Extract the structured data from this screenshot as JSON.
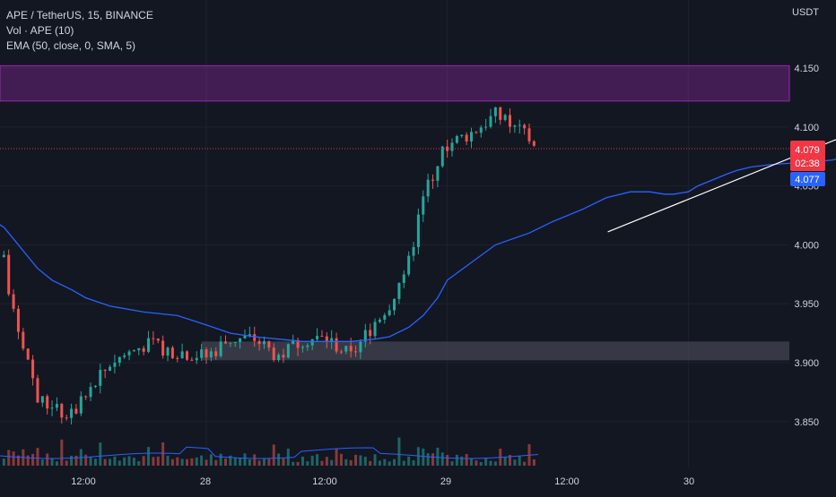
{
  "header": {
    "symbol_line": "APE / TetherUS, 15, BINANCE",
    "volume_line": "Vol · APE (10)",
    "ema_line": "EMA (50, close, 0, SMA, 5)"
  },
  "axis": {
    "currency": "USDT",
    "price_ticks": [
      "4.150",
      "4.100",
      "4.050",
      "4.000",
      "3.950",
      "3.900",
      "3.850"
    ],
    "time_ticks": [
      "12:00",
      "28",
      "12:00",
      "29",
      "12:00",
      "30"
    ]
  },
  "price_tag": {
    "value": "4.079",
    "countdown": "02:38",
    "color": "#f23645"
  },
  "ema_tag": {
    "value": "4.077",
    "color": "#2962ff"
  },
  "colors": {
    "background": "#131722",
    "up": "#26a69a",
    "down": "#ef5350",
    "ema": "#2962ff",
    "grid": "#1e222d",
    "resistance_zone": "#9c27b0",
    "support_zone": "#434651",
    "trendline": "#ffffff"
  },
  "chart_data": {
    "type": "candlestick",
    "interval": "15",
    "ylim": [
      3.825,
      4.175
    ],
    "zones": [
      {
        "name": "resistance",
        "y_low": 4.122,
        "y_high": 4.152,
        "x_start_day": 27.0,
        "x_end_day": 29.375
      },
      {
        "name": "support",
        "y_low": 3.902,
        "y_high": 3.918,
        "x_start_day": 27.99,
        "x_end_day": 29.94
      }
    ],
    "trendline": {
      "x1_day": 28.833,
      "y1": 4.011,
      "x2_day": 29.48,
      "y2": 4.118
    },
    "segments": [
      {
        "x_day": 26.9,
        "ema": 4.145,
        "close": 4.145
      },
      {
        "x_day": 26.93,
        "ema": 4.14,
        "close": 4.14
      },
      {
        "x_day": 26.96,
        "ema": 4.132,
        "close": 4.125
      },
      {
        "x_day": 27.0,
        "ema": 4.118,
        "close": 4.112
      },
      {
        "x_day": 27.02,
        "ema": 4.105,
        "close": 4.08
      },
      {
        "x_day": 27.05,
        "ema": 4.09,
        "close": 4.06
      },
      {
        "x_day": 27.08,
        "ema": 4.08,
        "close": 4.025
      },
      {
        "x_day": 27.12,
        "ema": 4.072,
        "close": 4.023
      },
      {
        "x_day": 27.18,
        "ema": 4.06,
        "close": 4.03
      },
      {
        "x_day": 27.22,
        "ema": 4.052,
        "close": 4.015
      },
      {
        "x_day": 27.27,
        "ema": 4.047,
        "close": 3.99
      },
      {
        "x_day": 27.33,
        "ema": 4.043,
        "close": 4.015
      },
      {
        "x_day": 27.4,
        "ema": 4.041,
        "close": 4.02
      },
      {
        "x_day": 27.46,
        "ema": 4.037,
        "close": 4.025
      },
      {
        "x_day": 27.52,
        "ema": 4.03,
        "close": 4.01
      },
      {
        "x_day": 27.58,
        "ema": 4.015,
        "close": 3.985
      },
      {
        "x_day": 27.6,
        "ema": 4.005,
        "close": 3.94
      },
      {
        "x_day": 27.63,
        "ema": 3.99,
        "close": 3.905
      },
      {
        "x_day": 27.65,
        "ema": 3.98,
        "close": 3.87
      },
      {
        "x_day": 27.68,
        "ema": 3.97,
        "close": 3.86
      },
      {
        "x_day": 27.72,
        "ema": 3.962,
        "close": 3.855
      },
      {
        "x_day": 27.75,
        "ema": 3.955,
        "close": 3.87
      },
      {
        "x_day": 27.8,
        "ema": 3.948,
        "close": 3.9
      },
      {
        "x_day": 27.87,
        "ema": 3.943,
        "close": 3.915
      },
      {
        "x_day": 27.94,
        "ema": 3.94,
        "close": 3.91
      },
      {
        "x_day": 28.0,
        "ema": 3.932,
        "close": 3.905
      },
      {
        "x_day": 28.05,
        "ema": 3.925,
        "close": 3.92
      },
      {
        "x_day": 28.1,
        "ema": 3.922,
        "close": 3.92
      },
      {
        "x_day": 28.15,
        "ema": 3.92,
        "close": 3.905
      },
      {
        "x_day": 28.2,
        "ema": 3.918,
        "close": 3.92
      },
      {
        "x_day": 28.25,
        "ema": 3.918,
        "close": 3.92
      },
      {
        "x_day": 28.3,
        "ema": 3.918,
        "close": 3.905
      },
      {
        "x_day": 28.35,
        "ema": 3.92,
        "close": 3.935
      },
      {
        "x_day": 28.38,
        "ema": 3.922,
        "close": 3.95
      },
      {
        "x_day": 28.42,
        "ema": 3.93,
        "close": 3.985
      },
      {
        "x_day": 28.45,
        "ema": 3.94,
        "close": 4.04
      },
      {
        "x_day": 28.48,
        "ema": 3.955,
        "close": 4.07
      },
      {
        "x_day": 28.5,
        "ema": 3.97,
        "close": 4.085
      },
      {
        "x_day": 28.55,
        "ema": 3.985,
        "close": 4.095
      },
      {
        "x_day": 28.6,
        "ema": 4.0,
        "close": 4.11
      },
      {
        "x_day": 28.67,
        "ema": 4.01,
        "close": 4.09
      },
      {
        "x_day": 28.72,
        "ema": 4.02,
        "close": 4.075
      },
      {
        "x_day": 28.78,
        "ema": 4.03,
        "close": 4.065
      },
      {
        "x_day": 28.83,
        "ema": 4.04,
        "close": 4.08
      },
      {
        "x_day": 28.88,
        "ema": 4.045,
        "close": 4.065
      },
      {
        "x_day": 28.92,
        "ema": 4.045,
        "close": 4.03
      },
      {
        "x_day": 28.95,
        "ema": 4.043,
        "close": 4.03
      },
      {
        "x_day": 28.97,
        "ema": 4.043,
        "close": 4.04
      },
      {
        "x_day": 29.0,
        "ema": 4.045,
        "close": 4.06
      },
      {
        "x_day": 29.02,
        "ema": 4.05,
        "close": 4.1
      },
      {
        "x_day": 29.05,
        "ema": 4.055,
        "close": 4.125
      },
      {
        "x_day": 29.08,
        "ema": 4.06,
        "close": 4.115
      },
      {
        "x_day": 29.1,
        "ema": 4.063,
        "close": 4.1
      },
      {
        "x_day": 29.13,
        "ema": 4.066,
        "close": 4.09
      },
      {
        "x_day": 29.17,
        "ema": 4.068,
        "close": 4.08
      },
      {
        "x_day": 29.2,
        "ema": 4.069,
        "close": 4.075
      },
      {
        "x_day": 29.25,
        "ema": 4.07,
        "close": 4.08
      },
      {
        "x_day": 29.3,
        "ema": 4.072,
        "close": 4.07
      },
      {
        "x_day": 29.33,
        "ema": 4.075,
        "close": 4.08
      },
      {
        "x_day": 29.37,
        "ema": 4.076,
        "close": 4.105
      },
      {
        "x_day": 29.4,
        "ema": 4.077,
        "close": 4.095
      },
      {
        "x_day": 29.43,
        "ema": 4.077,
        "close": 4.079
      }
    ]
  }
}
